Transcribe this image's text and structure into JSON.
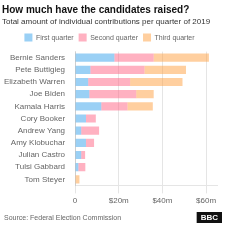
{
  "chart_data": {
    "type": "bar",
    "orientation": "horizontal",
    "stacked": true,
    "title": "How much have the candidates raised?",
    "subtitle": "Total amount of individual contributions per quarter of 2019",
    "source": "Source: Federal Election Commission",
    "annotations": [
      "BBC"
    ],
    "categories": [
      "Bernie Sanders",
      "Pete Buttigieg",
      "Elizabeth Warren",
      "Joe Biden",
      "Kamala Harris",
      "Cory Booker",
      "Andrew Yang",
      "Amy Klobuchar",
      "Julian Castro",
      "Tulsi Gabbard",
      "Tom Steyer"
    ],
    "series": [
      {
        "name": "First quarter",
        "values": [
          18.0,
          7.0,
          6.0,
          6.5,
          12.0,
          5.0,
          2.8,
          5.0,
          2.8,
          1.5,
          0.0
        ]
      },
      {
        "name": "Second quarter",
        "values": [
          18.0,
          24.8,
          19.2,
          21.5,
          12.0,
          4.5,
          8.2,
          3.7,
          1.8,
          3.2,
          0.0
        ]
      },
      {
        "name": "Third quarter",
        "values": [
          25.3,
          19.0,
          24.0,
          8.0,
          11.6,
          0.0,
          0.0,
          0.0,
          0.0,
          0.0,
          2.0
        ]
      }
    ],
    "xlim": [
      0,
      65
    ],
    "xticks": [
      0,
      {
        "value": 20,
        "label": "$20m"
      },
      {
        "value": 40,
        "label": "$40m"
      },
      {
        "value": 60,
        "label": "$60m"
      }
    ],
    "grid": true,
    "legend": "top"
  }
}
